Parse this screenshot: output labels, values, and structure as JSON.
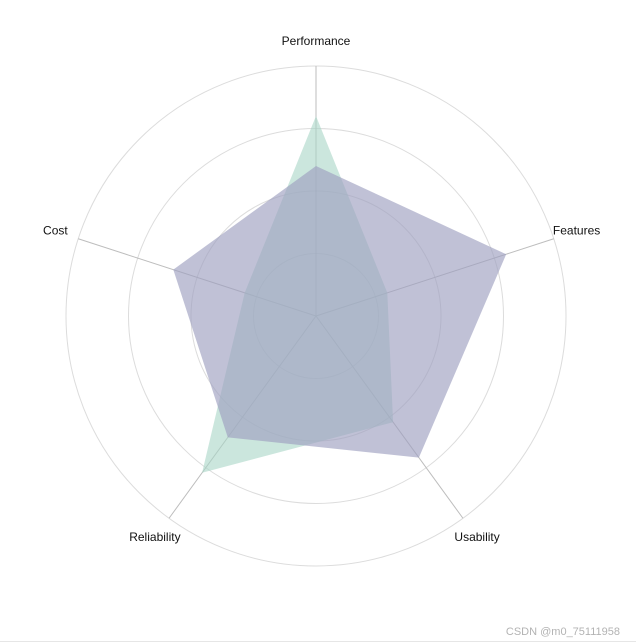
{
  "chart_data": {
    "type": "radar",
    "indicators": [
      "Performance",
      "Features",
      "Usability",
      "Reliability",
      "Cost"
    ],
    "max": 4,
    "rings": 4,
    "series": [
      {
        "values": [
          3.2,
          1.2,
          2.1,
          3.1,
          1.2
        ],
        "color": "#a8d5c6",
        "opacity": 0.6
      },
      {
        "values": [
          2.4,
          3.2,
          2.8,
          2.4,
          2.4
        ],
        "color": "#9ea0c0",
        "opacity": 0.65
      }
    ],
    "grid_color": "#dcdcdc",
    "axis_line_color": "#bdbdbd"
  },
  "watermark": "CSDN @m0_75111958"
}
